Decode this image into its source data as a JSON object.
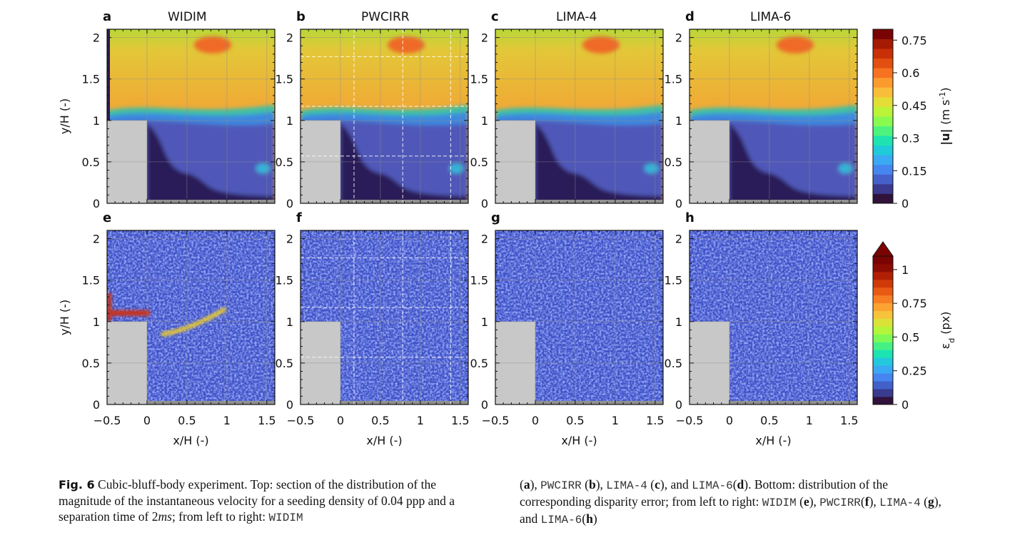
{
  "figure": {
    "colorbars": {
      "velocity": {
        "label_main": "|u|",
        "label_unit": "(m s",
        "label_exp": "-1",
        "label_close": ")",
        "ticks": [
          "0",
          "0.15",
          "0.3",
          "0.45",
          "0.6",
          "0.75"
        ]
      },
      "disparity": {
        "label_sym": "ε",
        "label_sub": "d",
        "label_unit": "(px)",
        "ticks": [
          "0",
          "0.25",
          "0.5",
          "0.75",
          "1"
        ]
      }
    }
  },
  "chart_data": [
    {
      "type": "heatmap",
      "panels": [
        {
          "letter": "a",
          "title": "WIDIM"
        },
        {
          "letter": "b",
          "title": "PWCIRR"
        },
        {
          "letter": "c",
          "title": "LIMA-4"
        },
        {
          "letter": "d",
          "title": "LIMA-6"
        }
      ],
      "ylabel": "y/H (-)",
      "xlim": [
        -0.5,
        1.6
      ],
      "ylim": [
        0,
        2.1
      ],
      "yticks": [
        "0",
        "0.5",
        "1",
        "1.5",
        "2"
      ],
      "colorbar_range": [
        0,
        0.8
      ],
      "grid": true
    },
    {
      "type": "heatmap",
      "panels": [
        {
          "letter": "e"
        },
        {
          "letter": "f"
        },
        {
          "letter": "g"
        },
        {
          "letter": "h"
        }
      ],
      "xlabel": "x/H (-)",
      "ylabel": "y/H (-)",
      "xlim": [
        -0.5,
        1.6
      ],
      "ylim": [
        0,
        2.1
      ],
      "xticks": [
        "−0.5",
        "0",
        "0.5",
        "1",
        "1.5"
      ],
      "yticks": [
        "0",
        "0.5",
        "1",
        "1.5",
        "2"
      ],
      "colorbar_range": [
        0,
        1.1
      ],
      "grid": true
    }
  ],
  "caption": {
    "fig_label": "Fig. 6",
    "left_text_1": "Cubic-bluff-body experiment. Top: section of the distribution of the magnitude of the instantaneous velocity for a seeding density of 0.04 ppp and a separation time of 2",
    "left_text_ms": "ms",
    "left_text_2": "; from left to right:",
    "m1": "WIDIM",
    "r1": "(",
    "ra": "a",
    "r2": "),",
    "m2": "PWCIRR",
    "r3": "(",
    "rb": "b",
    "r4": "),",
    "m3": "LIMA-4",
    "r5": "(",
    "rc": "c",
    "r6": "), and",
    "m4": "LIMA-6",
    "r7": "(",
    "rd": "d",
    "r8": "). Bottom: distribution of the corresponding disparity error; from left to right:",
    "m5": "WIDIM",
    "r9": "(",
    "re": "e",
    "r10": "),",
    "m6": "PWCIRR",
    "r11": "(",
    "rf": "f",
    "r12": "),",
    "m7": "LIMA-4",
    "r13": "(",
    "rg": "g",
    "r14": "), and",
    "m8": "LIMA-6",
    "r15": "(",
    "rh": "h",
    "r16": ")"
  }
}
